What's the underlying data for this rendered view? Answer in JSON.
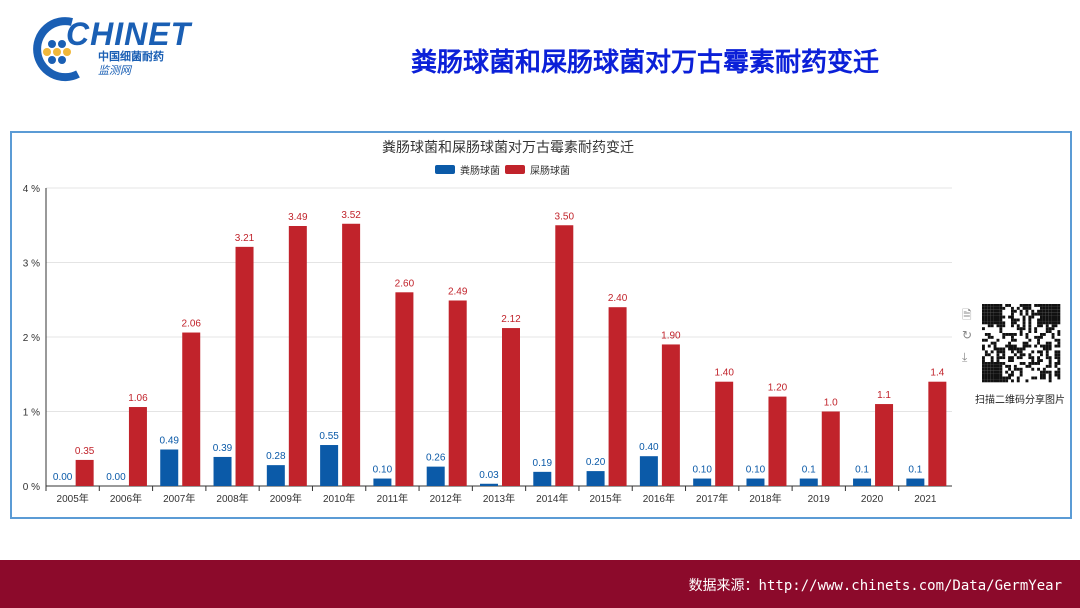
{
  "logo": {
    "word": "CHINET",
    "sub1": "中国细菌耐药",
    "sub2": "监测网"
  },
  "slide_title": "粪肠球菌和屎肠球菌对万古霉素耐药变迁",
  "qr_caption": "扫描二维码分享图片",
  "footer": "数据来源：http://www.chinets.com/Data/GermYear",
  "colors": {
    "faecalis": "#0b5aa8",
    "faecium": "#c1232b"
  },
  "chart_data": {
    "type": "bar",
    "title": "粪肠球菌和屎肠球菌对万古霉素耐药变迁",
    "categories": [
      "2005年",
      "2006年",
      "2007年",
      "2008年",
      "2009年",
      "2010年",
      "2011年",
      "2012年",
      "2013年",
      "2014年",
      "2015年",
      "2016年",
      "2017年",
      "2018年",
      "2019",
      "2020",
      "2021"
    ],
    "series": [
      {
        "name": "粪肠球菌",
        "values": [
          0.0,
          0.0,
          0.49,
          0.39,
          0.28,
          0.55,
          0.1,
          0.26,
          0.03,
          0.19,
          0.2,
          0.4,
          0.1,
          0.1,
          0.1,
          0.1,
          0.1
        ],
        "labels": [
          "0.00",
          "0.00",
          "0.49",
          "0.39",
          "0.28",
          "0.55",
          "0.10",
          "0.26",
          "0.03",
          "0.19",
          "0.20",
          "0.40",
          "0.10",
          "0.10",
          "0.1",
          "0.1",
          "0.1"
        ]
      },
      {
        "name": "屎肠球菌",
        "values": [
          0.35,
          1.06,
          2.06,
          3.21,
          3.49,
          3.52,
          2.6,
          2.49,
          2.12,
          3.5,
          2.4,
          1.9,
          1.4,
          1.2,
          1.0,
          1.1,
          1.4
        ],
        "labels": [
          "0.35",
          "1.06",
          "2.06",
          "3.21",
          "3.49",
          "3.52",
          "2.60",
          "2.49",
          "2.12",
          "3.50",
          "2.40",
          "1.90",
          "1.40",
          "1.20",
          "1.0",
          "1.1",
          "1.4"
        ]
      }
    ],
    "yticks": [
      "0 %",
      "1 %",
      "2 %",
      "3 %",
      "4 %"
    ],
    "ylim": [
      0,
      4
    ],
    "legend": "top-center",
    "grid": true
  }
}
